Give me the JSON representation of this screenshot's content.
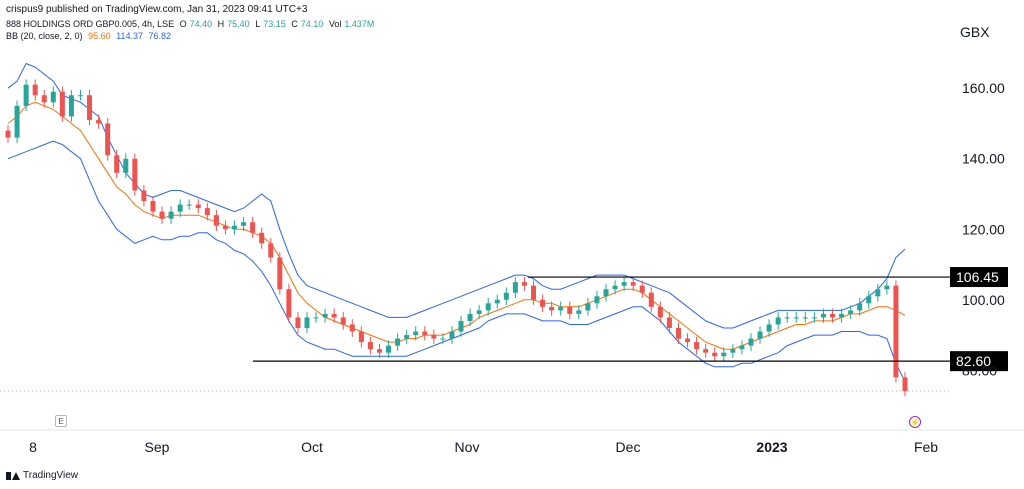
{
  "header": {
    "published_by": "crispus9 published on TradingView.com, Jan 31, 2023 09:41 UTC+3",
    "symbol_line": {
      "name": "888 HOLDINGS ORD GBP0.005, 4h, LSE",
      "o_label": "O",
      "o_value": "74.40",
      "h_label": "H",
      "h_value": "75.40",
      "l_label": "L",
      "l_value": "73.15",
      "c_label": "C",
      "c_value": "74.10",
      "vol_label": "Vol",
      "vol_value": "1.437M"
    },
    "bb_line": {
      "name": "BB (20, close, 2, 0)",
      "basis": "95.60",
      "upper": "114.37",
      "lower": "76.82"
    }
  },
  "currency": "GBX",
  "footer": {
    "brand": "TradingView",
    "e_label": "E",
    "event_icon": "lightning-icon"
  },
  "colors": {
    "up": "#26a69a",
    "down": "#ef5350",
    "basis": "#ff6d00",
    "bands": "#2962ff",
    "level": "#000000",
    "grid_text": "#131722"
  },
  "chart_data": {
    "type": "line",
    "title": "888 HOLDINGS ORD GBP0.005, 4h, LSE",
    "xlabel": "",
    "ylabel": "",
    "ylim": [
      73,
      168
    ],
    "y_ticks": [
      "160.00",
      "140.00",
      "120.00",
      "100.00",
      "80.00"
    ],
    "y_tick_values": [
      160,
      140,
      120,
      100,
      80
    ],
    "x_tick_labels": [
      "8",
      "Sep",
      "Oct",
      "Nov",
      "Dec",
      "2023",
      "Feb"
    ],
    "grid": false,
    "horizontal_levels": [
      {
        "label": "106.45",
        "value": 106.45
      },
      {
        "label": "82.60",
        "value": 82.6
      }
    ],
    "series": [
      {
        "values": [
          146,
          155,
          161,
          158,
          156,
          159,
          152,
          158,
          158,
          151,
          150,
          141,
          136,
          140,
          131,
          128,
          125,
          123,
          125,
          127,
          127,
          126,
          124,
          121,
          120,
          121,
          122,
          119,
          116,
          112,
          103,
          95,
          92,
          95,
          95,
          96,
          95,
          93,
          91,
          88,
          86,
          85,
          87,
          89,
          90,
          91,
          90,
          89,
          89,
          91,
          94,
          96,
          97,
          99,
          100,
          102,
          105,
          104,
          100,
          98,
          97,
          98,
          96,
          97,
          99,
          101,
          103,
          104,
          105,
          104,
          102,
          98,
          95,
          92,
          89,
          88,
          86,
          85,
          84,
          85,
          86,
          87,
          89,
          91,
          93,
          95,
          95,
          95,
          95,
          95,
          96,
          95,
          96,
          97,
          99,
          101,
          103,
          104,
          78,
          74.1
        ]
      },
      {
        "name": "Basis",
        "values": [
          150,
          152,
          155,
          156,
          155,
          154,
          152,
          150,
          148,
          144,
          140,
          136,
          132,
          130,
          127,
          125,
          124,
          123,
          124,
          124,
          124,
          124,
          123,
          122,
          121,
          120,
          120,
          119,
          118,
          116,
          112,
          107,
          102,
          99,
          97,
          95,
          94,
          93,
          92,
          91,
          90,
          89,
          88,
          88,
          89,
          89,
          90,
          90,
          90,
          91,
          92,
          93,
          95,
          96,
          97,
          98,
          99,
          100,
          100,
          99,
          99,
          98,
          98,
          98,
          99,
          100,
          101,
          102,
          103,
          103,
          102,
          100,
          98,
          96,
          94,
          92,
          90,
          88,
          87,
          86,
          86,
          87,
          88,
          89,
          90,
          91,
          92,
          93,
          93,
          94,
          94,
          94,
          95,
          96,
          96,
          97,
          98,
          98,
          97,
          95.6
        ]
      },
      {
        "name": "Upper",
        "values": [
          160,
          162,
          167,
          166,
          164,
          162,
          158,
          157,
          156,
          154,
          152,
          146,
          141,
          136,
          133,
          130,
          129,
          130,
          131,
          131,
          130,
          129,
          128,
          127,
          126,
          125,
          126,
          128,
          130,
          128,
          120,
          113,
          107,
          104,
          103,
          102,
          101,
          100,
          99,
          98,
          97,
          96,
          95,
          95,
          95,
          96,
          97,
          98,
          99,
          100,
          101,
          102,
          103,
          104,
          105,
          106,
          107,
          107,
          106,
          104,
          103,
          103,
          104,
          105,
          106,
          107,
          107,
          107,
          107,
          106,
          105,
          104,
          103,
          102,
          100,
          98,
          96,
          94,
          93,
          92,
          92,
          93,
          94,
          95,
          96,
          97,
          97,
          97,
          97,
          97,
          97,
          97,
          97,
          98,
          99,
          101,
          103,
          106,
          112,
          114.37
        ]
      },
      {
        "name": "Lower",
        "values": [
          140,
          141,
          142,
          143,
          144,
          145,
          144,
          142,
          140,
          134,
          128,
          124,
          120,
          118,
          116,
          117,
          118,
          117,
          117,
          118,
          118,
          119,
          119,
          117,
          116,
          114,
          113,
          111,
          108,
          104,
          99,
          94,
          90,
          88,
          87,
          86,
          86,
          85,
          84,
          84,
          84,
          84,
          84,
          84,
          84,
          85,
          86,
          87,
          88,
          89,
          90,
          91,
          92,
          94,
          95,
          96,
          96,
          96,
          95,
          94,
          94,
          94,
          93,
          93,
          93,
          94,
          95,
          96,
          97,
          98,
          98,
          96,
          94,
          91,
          88,
          86,
          84,
          82,
          81,
          81,
          81,
          82,
          82,
          83,
          84,
          85,
          87,
          88,
          89,
          90,
          90,
          90,
          91,
          91,
          91,
          90,
          90,
          89,
          82,
          76.82
        ]
      }
    ]
  }
}
